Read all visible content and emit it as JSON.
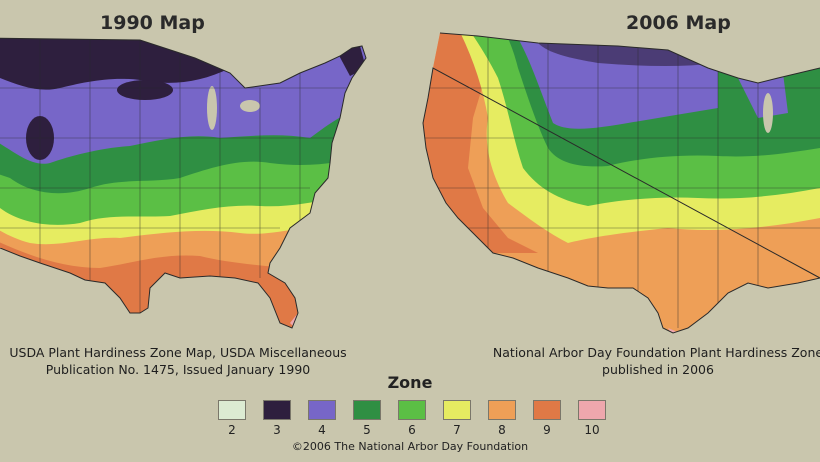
{
  "maps": [
    {
      "title": "1990 Map",
      "caption_lines": [
        "USDA Plant Hardiness Zone Map, USDA Miscellaneous",
        "Publication No. 1475, Issued January 1990"
      ]
    },
    {
      "title": "2006 Map",
      "caption_lines": [
        "National Arbor Day Foundation  Plant Hardiness Zone",
        "published in 2006"
      ]
    }
  ],
  "legend": {
    "title": "Zone",
    "zones": [
      {
        "label": "2",
        "color": "#dcebd2"
      },
      {
        "label": "3",
        "color": "#2e1f3e"
      },
      {
        "label": "4",
        "color": "#7766c8"
      },
      {
        "label": "5",
        "color": "#2f8f43"
      },
      {
        "label": "6",
        "color": "#5bbf45"
      },
      {
        "label": "7",
        "color": "#e6ec61"
      },
      {
        "label": "8",
        "color": "#ee9f57"
      },
      {
        "label": "9",
        "color": "#e07946"
      },
      {
        "label": "10",
        "color": "#eea7ad"
      }
    ]
  },
  "copyright": "©2006 The National Arbor Day Foundation"
}
